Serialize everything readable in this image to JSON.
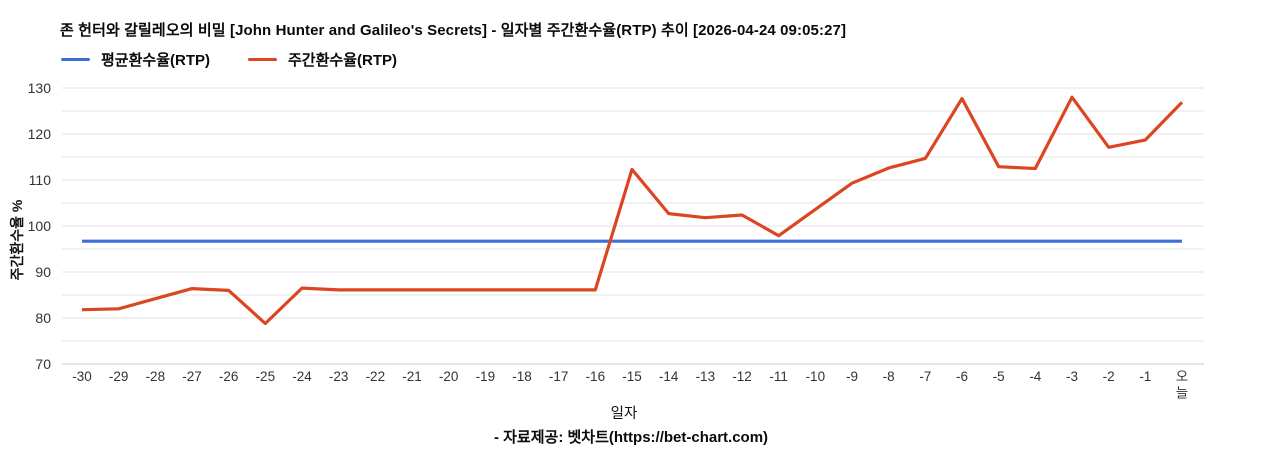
{
  "title": "존 헌터와 갈릴레오의 비밀 [John Hunter and Galileo's Secrets] - 일자별 주간환수율(RTP) 추이 [2026-04-24 09:05:27]",
  "legend": {
    "items": [
      {
        "label": "평균환수율(RTP)",
        "color": "#3b6fd7"
      },
      {
        "label": "주간환수율(RTP)",
        "color": "#dc4522"
      }
    ]
  },
  "footer": "- 자료제공: 벳차트(https://bet-chart.com)",
  "chart_data": {
    "type": "line",
    "title": "존 헌터와 갈릴레오의 비밀 [John Hunter and Galileo's Secrets] - 일자별 주간환수율(RTP) 추이 [2026-04-24 09:05:27]",
    "xlabel": "일자",
    "ylabel": "주간환수율 %",
    "ylim": [
      70,
      130
    ],
    "yticks": [
      70,
      80,
      90,
      100,
      110,
      120,
      130
    ],
    "gridline_step": 5,
    "grid": true,
    "legend_position": "top-left",
    "categories": [
      "-30",
      "-29",
      "-28",
      "-27",
      "-26",
      "-25",
      "-24",
      "-23",
      "-22",
      "-21",
      "-20",
      "-19",
      "-18",
      "-17",
      "-16",
      "-15",
      "-14",
      "-13",
      "-12",
      "-11",
      "-10",
      "-9",
      "-8",
      "-7",
      "-6",
      "-5",
      "-4",
      "-3",
      "-2",
      "-1",
      "오늘"
    ],
    "series": [
      {
        "name": "평균환수율(RTP)",
        "color": "#3b6fd7",
        "constant": 96.7
      },
      {
        "name": "주간환수율(RTP)",
        "color": "#dc4522",
        "values": [
          81.8,
          82.0,
          84.2,
          86.4,
          86.0,
          78.8,
          86.5,
          86.1,
          86.1,
          86.1,
          86.1,
          86.1,
          86.1,
          86.1,
          86.1,
          112.3,
          102.7,
          101.8,
          102.4,
          97.9,
          103.6,
          109.3,
          112.6,
          114.7,
          127.7,
          112.9,
          112.5,
          128.0,
          117.1,
          118.7,
          126.9
        ]
      }
    ],
    "colors": {
      "gridline": "#e3e3e3",
      "baseline": "#c8c8c8",
      "tick_text": "#333333"
    }
  }
}
